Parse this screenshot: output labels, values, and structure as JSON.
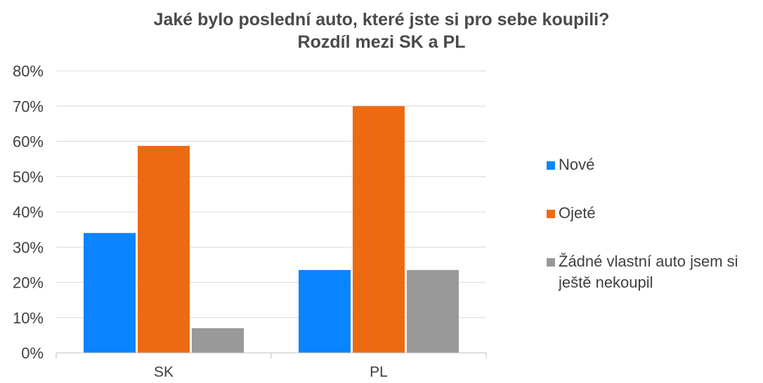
{
  "chart_data": {
    "type": "bar",
    "title": "Jaké bylo poslední auto, které jste si pro sebe koupili?",
    "subtitle": "Rozdíl mezi SK a PL",
    "categories": [
      "SK",
      "PL"
    ],
    "series": [
      {
        "name": "Nové",
        "values": [
          34,
          23.5
        ],
        "color": "#0A84FF"
      },
      {
        "name": "Ojeté",
        "values": [
          58.7,
          70
        ],
        "color": "#EE6A12"
      },
      {
        "name": "Žádné vlastní auto jsem si ještě nekoupil",
        "values": [
          7,
          23.5
        ],
        "color": "#999999"
      }
    ],
    "yticks": [
      "0%",
      "10%",
      "20%",
      "30%",
      "40%",
      "50%",
      "60%",
      "70%",
      "80%"
    ],
    "ylim": [
      0,
      80
    ],
    "grid": true,
    "legend": "right"
  }
}
